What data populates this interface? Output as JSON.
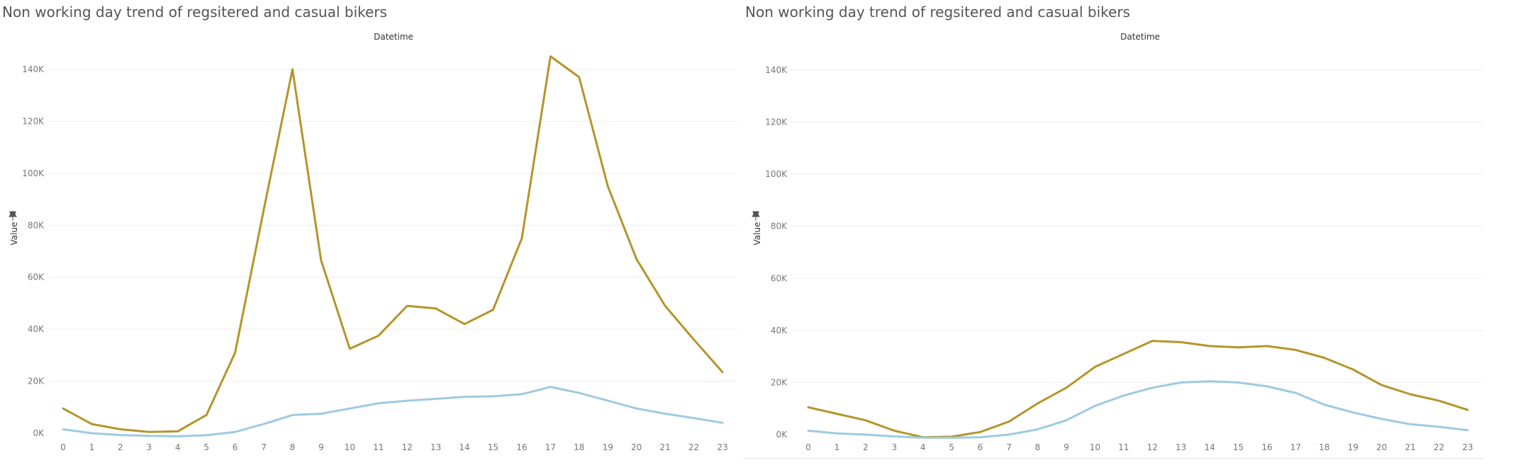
{
  "colors": {
    "registered": "#b5952a",
    "casual": "#9ecae1",
    "grid": "#eeeeee",
    "text": "#777777",
    "title": "#555555"
  },
  "chart_data": [
    {
      "type": "line",
      "title": "Non working day trend of regsitered and casual bikers",
      "xlabel": "Datetime",
      "ylabel": "Value",
      "ylabel_icon": "pin-icon",
      "ylim": [
        0,
        140000
      ],
      "yticks": [
        0,
        20000,
        40000,
        60000,
        80000,
        100000,
        120000,
        140000
      ],
      "ytick_labels": [
        "0K",
        "20K",
        "40K",
        "60K",
        "80K",
        "100K",
        "120K",
        "140K"
      ],
      "x": [
        "0",
        "1",
        "2",
        "3",
        "4",
        "5",
        "6",
        "7",
        "8",
        "9",
        "10",
        "11",
        "12",
        "13",
        "14",
        "15",
        "16",
        "17",
        "18",
        "19",
        "20",
        "21",
        "22",
        "23"
      ],
      "grid": true,
      "legend": "none",
      "series": [
        {
          "color": "#b5952a",
          "values": [
            9500,
            3500,
            1500,
            500,
            700,
            7000,
            31000,
            86000,
            140000,
            66500,
            32500,
            37500,
            49000,
            48000,
            42000,
            47500,
            75000,
            145000,
            137000,
            95000,
            67000,
            49000,
            36000,
            23500
          ]
        },
        {
          "color": "#9ecae1",
          "values": [
            1500,
            0,
            -700,
            -1000,
            -1200,
            -800,
            500,
            3500,
            7000,
            7500,
            9500,
            11500,
            12500,
            13200,
            14000,
            14200,
            15000,
            17800,
            15500,
            12500,
            9500,
            7500,
            5800,
            4000
          ]
        }
      ]
    },
    {
      "type": "line",
      "title": "Non working day trend of regsitered and casual bikers",
      "xlabel": "Datetime",
      "ylabel": "Value",
      "ylabel_icon": "pin-icon",
      "ylim": [
        0,
        140000
      ],
      "yticks": [
        0,
        20000,
        40000,
        60000,
        80000,
        100000,
        120000,
        140000
      ],
      "ytick_labels": [
        "0K",
        "20K",
        "40K",
        "60K",
        "80K",
        "100K",
        "120K",
        "140K"
      ],
      "x": [
        "0",
        "1",
        "2",
        "3",
        "4",
        "5",
        "6",
        "7",
        "8",
        "9",
        "10",
        "11",
        "12",
        "13",
        "14",
        "15",
        "16",
        "17",
        "18",
        "19",
        "20",
        "21",
        "22",
        "23"
      ],
      "grid": true,
      "legend": "none",
      "series": [
        {
          "color": "#b5952a",
          "values": [
            10500,
            8000,
            5500,
            1500,
            -1000,
            -800,
            1000,
            5000,
            12000,
            18000,
            26000,
            31000,
            36000,
            35500,
            34000,
            33500,
            34000,
            32500,
            29500,
            25000,
            19000,
            15500,
            13000,
            9500
          ]
        },
        {
          "color": "#9ecae1",
          "values": [
            1500,
            500,
            0,
            -700,
            -1200,
            -1200,
            -1000,
            0,
            2000,
            5500,
            11000,
            15000,
            18000,
            20000,
            20500,
            20000,
            18500,
            16000,
            11500,
            8500,
            6000,
            4000,
            3000,
            1700
          ]
        }
      ]
    }
  ]
}
